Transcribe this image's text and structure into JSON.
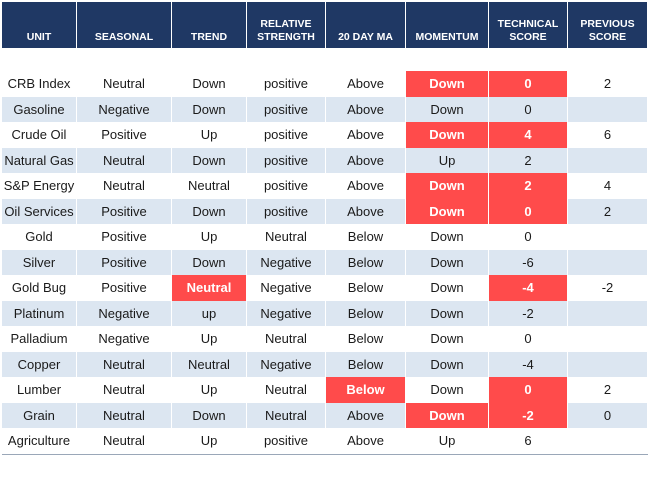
{
  "table": {
    "header": [
      "UNIT",
      "SEASONAL",
      "TREND",
      "RELATIVE STRENGTH",
      "20 DAY MA",
      "MOMENTUM",
      "TECHNICAL SCORE",
      "PREVIOUS SCORE"
    ],
    "rows": [
      [
        "CRB Index",
        "Neutral",
        "Down",
        "positive",
        "Above",
        "Down",
        "0",
        "2"
      ],
      [
        "Gasoline",
        "Negative",
        "Down",
        "positive",
        "Above",
        "Down",
        "0",
        null
      ],
      [
        "Crude Oil",
        "Positive",
        "Up",
        "positive",
        "Above",
        "Down",
        "4",
        "6"
      ],
      [
        "Natural Gas",
        "Neutral",
        "Down",
        "positive",
        "Above",
        "Up",
        "2",
        null
      ],
      [
        "S&P Energy",
        "Neutral",
        "Neutral",
        "positive",
        "Above",
        "Down",
        "2",
        "4"
      ],
      [
        "Oil Services",
        "Positive",
        "Down",
        "positive",
        "Above",
        "Down",
        "0",
        "2"
      ],
      [
        "Gold",
        "Positive",
        "Up",
        "Neutral",
        "Below",
        "Down",
        "0",
        null
      ],
      [
        "Silver",
        "Positive",
        "Down",
        "Negative",
        "Below",
        "Down",
        "-6",
        null
      ],
      [
        "Gold Bug",
        "Positive",
        "Neutral",
        "Negative",
        "Below",
        "Down",
        "-4",
        "-2"
      ],
      [
        "Platinum",
        "Negative",
        "up",
        "Negative",
        "Below",
        "Down",
        "-2",
        null
      ],
      [
        "Palladium",
        "Negative",
        "Up",
        "Neutral",
        "Below",
        "Down",
        "0",
        null
      ],
      [
        "Copper",
        "Neutral",
        "Neutral",
        "Negative",
        "Below",
        "Down",
        "-4",
        null
      ],
      [
        "Lumber",
        "Neutral",
        "Up",
        "Neutral",
        "Below",
        "Down",
        "0",
        "2"
      ],
      [
        "Grain",
        "Neutral",
        "Down",
        "Neutral",
        "Above",
        "Down",
        "-2",
        "0"
      ],
      [
        "Agriculture",
        "Neutral",
        "Up",
        "positive",
        "Above",
        "Up",
        "6",
        null
      ]
    ],
    "highlight_color": "#ff4b4b",
    "highlighted_cells": [
      [
        0,
        5
      ],
      [
        0,
        6
      ],
      [
        2,
        5
      ],
      [
        2,
        6
      ],
      [
        4,
        5
      ],
      [
        4,
        6
      ],
      [
        5,
        5
      ],
      [
        5,
        6
      ],
      [
        8,
        2
      ],
      [
        8,
        6
      ],
      [
        12,
        4
      ],
      [
        12,
        6
      ],
      [
        13,
        5
      ],
      [
        13,
        6
      ]
    ]
  }
}
